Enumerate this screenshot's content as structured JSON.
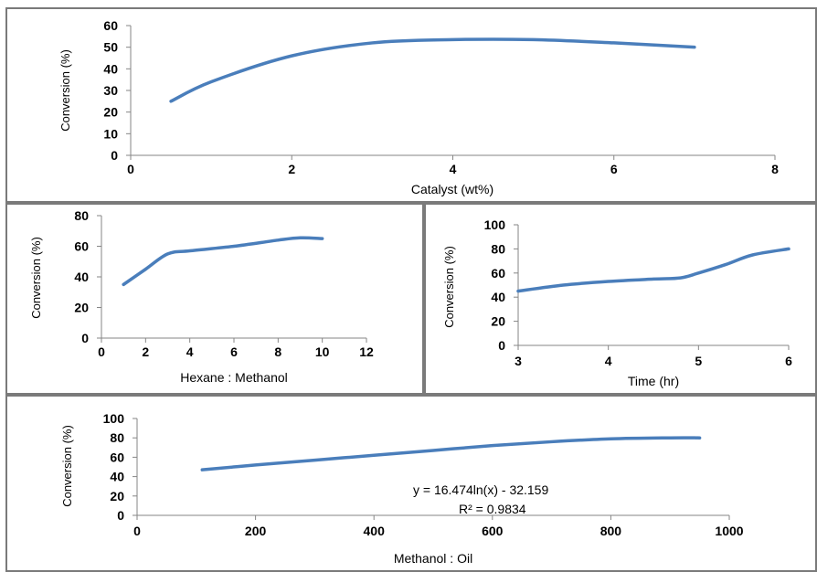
{
  "chart_data": [
    {
      "type": "line",
      "xlabel": "Catalyst (wt%)",
      "ylabel": "Conversion (%)",
      "xlim": [
        0,
        8
      ],
      "ylim": [
        0,
        60
      ],
      "xticks": [
        "0",
        "2",
        "4",
        "6",
        "8"
      ],
      "yticks": [
        "0",
        "10",
        "20",
        "30",
        "40",
        "50",
        "60"
      ],
      "grid": false,
      "series": [
        {
          "x": [
            0.5,
            1,
            2,
            3,
            4,
            5,
            6,
            7
          ],
          "values": [
            25,
            34,
            46,
            52,
            53.5,
            53.5,
            52,
            50
          ]
        }
      ],
      "color": "#4a7ebb"
    },
    {
      "type": "line",
      "xlabel": "Hexane : Methanol",
      "ylabel": "Conversion (%)",
      "xlim": [
        0,
        12
      ],
      "ylim": [
        0,
        80
      ],
      "xticks": [
        "0",
        "2",
        "4",
        "6",
        "8",
        "10",
        "12"
      ],
      "yticks": [
        "0",
        "20",
        "40",
        "60",
        "80"
      ],
      "grid": false,
      "series": [
        {
          "x": [
            1,
            2,
            3,
            4,
            6,
            8,
            9,
            10
          ],
          "values": [
            35,
            45,
            55,
            57,
            60,
            64,
            65.5,
            65
          ]
        }
      ],
      "color": "#4a7ebb"
    },
    {
      "type": "line",
      "xlabel": "Time (hr)",
      "ylabel": "Conversion (%)",
      "xlim": [
        3,
        6
      ],
      "ylim": [
        0,
        100
      ],
      "xticks": [
        "3",
        "4",
        "5",
        "6"
      ],
      "yticks": [
        "0",
        "20",
        "40",
        "60",
        "80",
        "100"
      ],
      "grid": false,
      "series": [
        {
          "x": [
            3,
            3.5,
            4,
            4.5,
            4.8,
            5,
            5.3,
            5.6,
            6
          ],
          "values": [
            45,
            50,
            53,
            55,
            56,
            60,
            67,
            75,
            80
          ]
        }
      ],
      "color": "#4a7ebb"
    },
    {
      "type": "line",
      "xlabel": "Methanol : Oil",
      "ylabel": "Conversion (%)",
      "xlim": [
        0,
        1000
      ],
      "ylim": [
        0,
        100
      ],
      "xticks": [
        "0",
        "200",
        "400",
        "600",
        "800",
        "1000"
      ],
      "yticks": [
        "0",
        "20",
        "40",
        "60",
        "80",
        "100"
      ],
      "grid": false,
      "annotation": [
        "y = 16.474ln(x) - 32.159",
        "R² = 0.9834"
      ],
      "series": [
        {
          "x": [
            110,
            200,
            300,
            400,
            500,
            600,
            700,
            800,
            900,
            950
          ],
          "values": [
            47,
            52,
            57,
            62,
            67,
            72,
            76,
            79,
            80,
            80
          ]
        }
      ],
      "color": "#4a7ebb"
    }
  ]
}
